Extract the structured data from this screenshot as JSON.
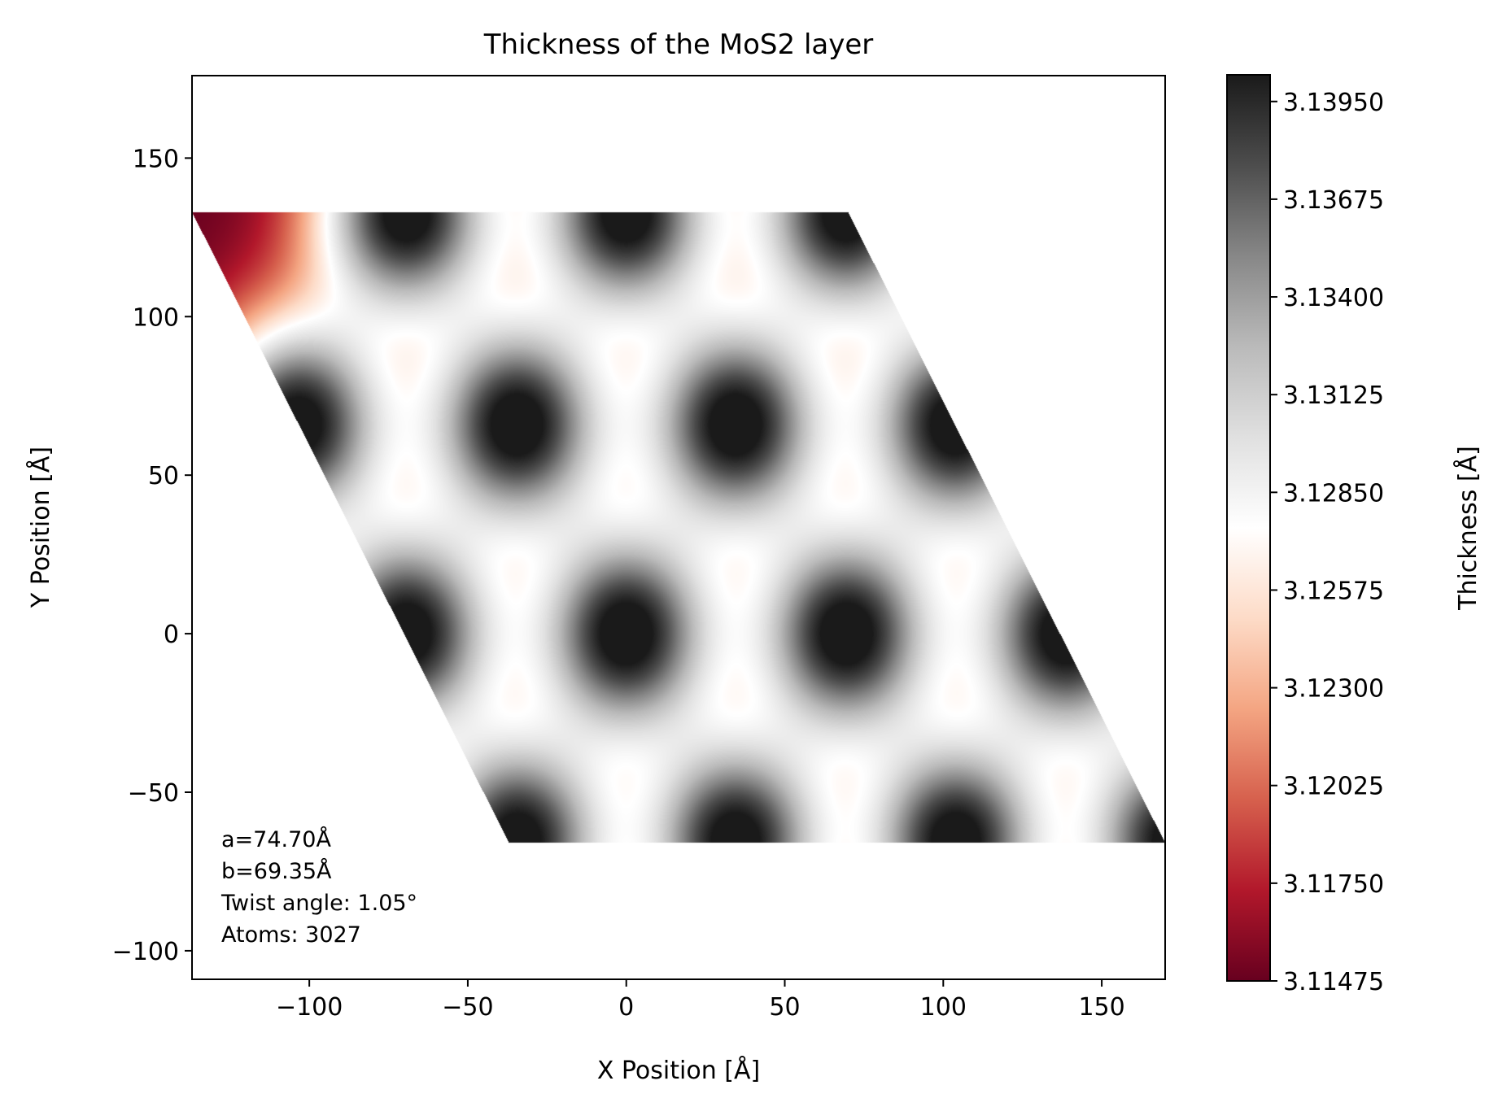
{
  "chart_data": {
    "type": "heatmap",
    "title": "Thickness of the MoS2 layer",
    "xlabel": "X Position [Å]",
    "ylabel": "Y Position [Å]",
    "xlim": [
      -137,
      170
    ],
    "ylim": [
      -109,
      176
    ],
    "xticks": [
      -100,
      -50,
      0,
      50,
      100,
      150
    ],
    "yticks": [
      -100,
      -50,
      0,
      50,
      100,
      150
    ],
    "xtick_labels": [
      "−100",
      "−50",
      "0",
      "50",
      "100",
      "150"
    ],
    "ytick_labels": [
      "−100",
      "−50",
      "0",
      "50",
      "100",
      "150"
    ],
    "grid": false,
    "colormap": "RdGy",
    "colorbar": {
      "label": "Thickness [Å]",
      "min": 3.11475,
      "max": 3.14025,
      "ticks": [
        3.11475,
        3.1175,
        3.12025,
        3.123,
        3.12575,
        3.1285,
        3.13125,
        3.134,
        3.13675,
        3.1395
      ],
      "tick_labels": [
        "3.11475",
        "3.11750",
        "3.12025",
        "3.12300",
        "3.12575",
        "3.12850",
        "3.13125",
        "3.13400",
        "3.13675",
        "3.13950"
      ]
    },
    "domain": {
      "shape": "parallelogram",
      "corners": [
        [
          -137,
          133
        ],
        [
          70,
          133
        ],
        [
          170,
          -66
        ],
        [
          -37,
          -66
        ]
      ]
    },
    "moire_maxima": [
      [
        -69.5,
        133
      ],
      [
        0,
        133
      ],
      [
        69.5,
        133
      ],
      [
        -104,
        66
      ],
      [
        -34.5,
        66
      ],
      [
        34.5,
        66
      ],
      [
        104,
        66
      ],
      [
        -69.5,
        0
      ],
      [
        0,
        0
      ],
      [
        69.5,
        0
      ],
      [
        139,
        0
      ],
      [
        -34.5,
        -66
      ],
      [
        34.5,
        -66
      ],
      [
        104,
        -66
      ],
      [
        173.5,
        -66
      ]
    ],
    "annotations": [
      "a=74.70Å",
      "b=69.35Å",
      "Twist angle: 1.05°",
      "Atoms: 3027"
    ]
  }
}
